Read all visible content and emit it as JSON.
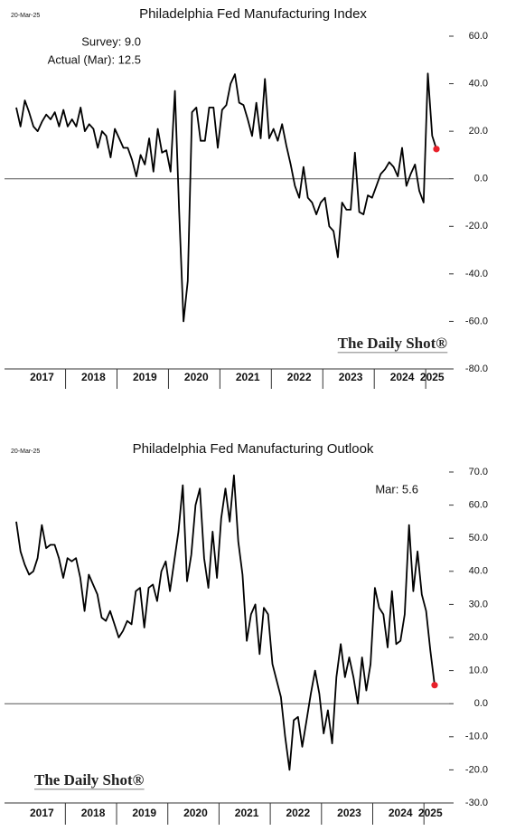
{
  "chart_data": [
    {
      "type": "line",
      "title": "Philadelphia Fed Manufacturing Index",
      "date": "20-Mar-25",
      "annotations": [
        "Survey:  9.0",
        "Actual (Mar):  12.5"
      ],
      "source": "The Daily Shot®",
      "categories": [
        null,
        null,
        null,
        null,
        null,
        null,
        "2017",
        null,
        null,
        null,
        null,
        null,
        null,
        null,
        null,
        null,
        null,
        null,
        "2018",
        null,
        null,
        null,
        null,
        null,
        null,
        null,
        null,
        null,
        null,
        null,
        "2019",
        null,
        null,
        null,
        null,
        null,
        null,
        null,
        null,
        null,
        null,
        null,
        "2020",
        null,
        null,
        null,
        null,
        null,
        null,
        null,
        null,
        null,
        null,
        null,
        "2021",
        null,
        null,
        null,
        null,
        null,
        null,
        null,
        null,
        null,
        null,
        null,
        "2022",
        null,
        null,
        null,
        null,
        null,
        null,
        null,
        null,
        null,
        null,
        null,
        "2023",
        null,
        null,
        null,
        null,
        null,
        null,
        null,
        null,
        null,
        null,
        null,
        "2024",
        null,
        null,
        null,
        null,
        null,
        null,
        "2025",
        null
      ],
      "series": [
        {
          "color": "#000000",
          "values": [
            30,
            22,
            33,
            28,
            22,
            20,
            24,
            27,
            25,
            28,
            22,
            29,
            22,
            25,
            22,
            30,
            20,
            23,
            21,
            13,
            20,
            18,
            9,
            21,
            17,
            13,
            13,
            8,
            1,
            10,
            6,
            17,
            3,
            21,
            11,
            12,
            3,
            37,
            -14,
            -60,
            -43,
            28,
            30,
            16,
            16,
            30,
            30,
            13,
            29,
            31,
            40,
            44,
            32,
            31,
            25,
            18,
            32,
            17,
            42,
            17,
            21,
            16,
            23,
            14,
            6,
            -3,
            -8,
            5,
            -8,
            -10,
            -15,
            -10,
            -8,
            -20,
            -22,
            -33,
            -10,
            -13,
            -13,
            11,
            -14,
            -15,
            -7,
            -8,
            -3,
            2,
            4,
            7,
            5,
            1,
            13,
            -3,
            2,
            6,
            -5,
            -10,
            44.3,
            18.1,
            12.5
          ]
        }
      ],
      "last_point_color": "#e8202a",
      "ylim": [
        -80,
        60
      ],
      "yticks": [
        {
          "value": 60,
          "label": "60.0"
        },
        {
          "value": 40,
          "label": "40.0"
        },
        {
          "value": 20,
          "label": "20.0"
        },
        {
          "value": 0,
          "label": "0.0"
        },
        {
          "value": -20,
          "label": "-20.0"
        },
        {
          "value": -40,
          "label": "-40.0"
        },
        {
          "value": -60,
          "label": "-60.0"
        },
        {
          "value": -80,
          "label": "-80.0"
        }
      ]
    },
    {
      "type": "line",
      "title": "Philadelphia Fed Manufacturing Outlook",
      "date": "20-Mar-25",
      "annotations": [
        "Mar:   5.6"
      ],
      "source": "The Daily Shot®",
      "categories": [
        null,
        null,
        null,
        null,
        null,
        null,
        "2017",
        null,
        null,
        null,
        null,
        null,
        null,
        null,
        null,
        null,
        null,
        null,
        "2018",
        null,
        null,
        null,
        null,
        null,
        null,
        null,
        null,
        null,
        null,
        null,
        "2019",
        null,
        null,
        null,
        null,
        null,
        null,
        null,
        null,
        null,
        null,
        null,
        "2020",
        null,
        null,
        null,
        null,
        null,
        null,
        null,
        null,
        null,
        null,
        null,
        "2021",
        null,
        null,
        null,
        null,
        null,
        null,
        null,
        null,
        null,
        null,
        null,
        "2022",
        null,
        null,
        null,
        null,
        null,
        null,
        null,
        null,
        null,
        null,
        null,
        "2023",
        null,
        null,
        null,
        null,
        null,
        null,
        null,
        null,
        null,
        null,
        null,
        "2024",
        null,
        null,
        null,
        null,
        null,
        null,
        "2025",
        null
      ],
      "series": [
        {
          "color": "#000000",
          "values": [
            55,
            46,
            42,
            39,
            40,
            44,
            54,
            47,
            48,
            48,
            44,
            38,
            44,
            43,
            44,
            38,
            28,
            39,
            36,
            33,
            26,
            25,
            28,
            24,
            20,
            22,
            25,
            24,
            34,
            35,
            23,
            35,
            36,
            31,
            40,
            43,
            34,
            43,
            52,
            66,
            37,
            45,
            60,
            65,
            44,
            35,
            52,
            38,
            56,
            65,
            55,
            69,
            49,
            39,
            19,
            27,
            30,
            15,
            29,
            27,
            12,
            7,
            2,
            -10,
            -20,
            -5,
            -4,
            -13,
            -5,
            3,
            10,
            3,
            -9,
            -2,
            -12,
            8,
            18,
            8,
            14,
            8,
            0,
            14,
            4,
            12,
            35,
            29,
            27,
            17,
            34,
            18,
            19,
            27,
            54,
            34,
            46,
            33,
            28,
            16,
            5.6
          ]
        }
      ],
      "last_point_color": "#e8202a",
      "ylim": [
        -30,
        70
      ],
      "yticks": [
        {
          "value": 70,
          "label": "70.0"
        },
        {
          "value": 60,
          "label": "60.0"
        },
        {
          "value": 50,
          "label": "50.0"
        },
        {
          "value": 40,
          "label": "40.0"
        },
        {
          "value": 30,
          "label": "30.0"
        },
        {
          "value": 20,
          "label": "20.0"
        },
        {
          "value": 10,
          "label": "10.0"
        },
        {
          "value": 0,
          "label": "0.0"
        },
        {
          "value": -10,
          "label": "-10.0"
        },
        {
          "value": -20,
          "label": "-20.0"
        },
        {
          "value": -30,
          "label": "-30.0"
        }
      ]
    }
  ]
}
